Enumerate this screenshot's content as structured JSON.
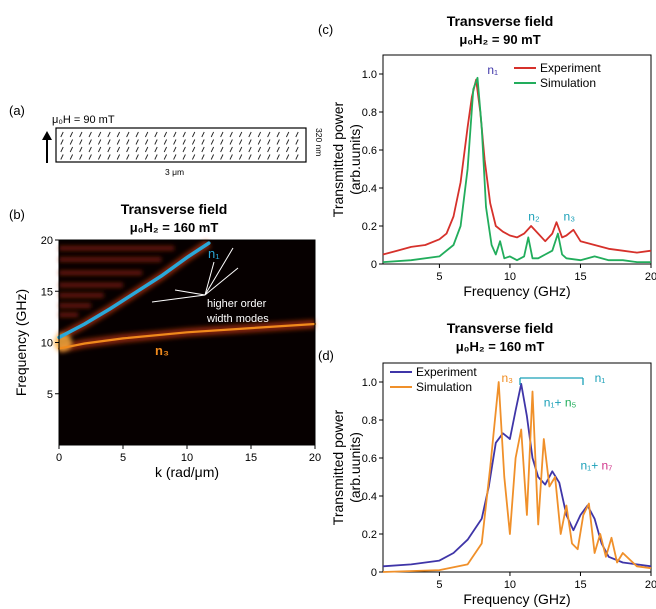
{
  "panels": {
    "a": {
      "label": "(a)",
      "field": "μ₀H = 90 mT",
      "width_label": "3 μm",
      "height_label": "320 nm"
    },
    "b": {
      "label": "(b)",
      "title_line1": "Transverse field",
      "title_line2": "μ₀H₂ = 160 mT",
      "annotation": [
        "higher order",
        "width modes"
      ]
    },
    "c": {
      "label": "(c)",
      "title_line1": "Transverse field",
      "title_line2": "μ₀H₂ = 90 mT"
    },
    "d": {
      "label": "(d)",
      "title_line1": "Transverse field",
      "title_line2": "μ₀H₂ = 160 mT"
    }
  },
  "colors": {
    "experiment_c": "#d6312b",
    "simulation_c": "#22ad5c",
    "experiment_d": "#3f35a8",
    "simulation_d": "#f0902a",
    "n1_mode": "#2aa8d8",
    "n3_mode": "#f08a1c",
    "label_n1_c": "#3f35a8",
    "label_n2": "#1ba0b8",
    "label_n1_d": "#1ba0b8",
    "label_n3_d": "#f08a1c",
    "label_n5": "#22ad5c",
    "label_n7": "#d0348a"
  },
  "chart_data": [
    {
      "id": "b",
      "type": "heatmap",
      "xlabel": "k (rad/μm)",
      "ylabel": "Frequency (GHz)",
      "xlim": [
        0,
        20
      ],
      "ylim": [
        0,
        20
      ],
      "xticks": [
        0,
        5,
        10,
        15,
        20
      ],
      "yticks": [
        5,
        10,
        15,
        20
      ],
      "series": [
        {
          "name": "n₁",
          "x": [
            0,
            2,
            4,
            6,
            8,
            10,
            11.7
          ],
          "y": [
            10.5,
            11.8,
            13.3,
            14.9,
            16.5,
            18.3,
            19.7
          ]
        },
        {
          "name": "n₃",
          "x": [
            0,
            2,
            5,
            10,
            15,
            20
          ],
          "y": [
            9.4,
            9.9,
            10.4,
            11.0,
            11.4,
            11.8
          ]
        }
      ],
      "mode_labels": {
        "n1": "n₁",
        "n3": "n₃"
      }
    },
    {
      "id": "c",
      "type": "line",
      "xlabel": "Frequency (GHz)",
      "ylabel": "Transmitted power (arb.uunits)",
      "xlim": [
        1,
        20
      ],
      "ylim": [
        0,
        1.1
      ],
      "xticks": [
        5,
        10,
        15,
        20
      ],
      "yticks": [
        0,
        0.2,
        0.4,
        0.6,
        0.8,
        1.0
      ],
      "series": [
        {
          "name": "Experiment",
          "x": [
            1,
            2,
            3,
            4,
            5,
            5.5,
            6,
            6.5,
            7,
            7.3,
            7.6,
            7.9,
            8.2,
            8.6,
            9,
            9.5,
            10,
            10.5,
            11,
            11.5,
            12,
            12.5,
            13,
            13.3,
            13.7,
            14,
            14.5,
            15,
            16,
            17,
            18,
            19,
            20
          ],
          "y": [
            0.05,
            0.07,
            0.09,
            0.1,
            0.13,
            0.16,
            0.25,
            0.43,
            0.72,
            0.88,
            0.97,
            0.8,
            0.55,
            0.32,
            0.2,
            0.17,
            0.15,
            0.14,
            0.16,
            0.2,
            0.16,
            0.12,
            0.16,
            0.22,
            0.14,
            0.15,
            0.18,
            0.12,
            0.1,
            0.08,
            0.07,
            0.06,
            0.07
          ]
        },
        {
          "name": "Simulation",
          "x": [
            1,
            3,
            5,
            6,
            6.5,
            7,
            7.4,
            7.7,
            8,
            8.3,
            8.7,
            9,
            9.3,
            9.6,
            10,
            10.5,
            11,
            11.3,
            11.6,
            12,
            12.5,
            13,
            13.4,
            13.7,
            14,
            15,
            16,
            17,
            18,
            19,
            20
          ],
          "y": [
            0.01,
            0.02,
            0.04,
            0.1,
            0.2,
            0.5,
            0.92,
            0.98,
            0.72,
            0.3,
            0.1,
            0.05,
            0.12,
            0.03,
            0.04,
            0.02,
            0.04,
            0.14,
            0.03,
            0.03,
            0.05,
            0.07,
            0.16,
            0.05,
            0.03,
            0.02,
            0.04,
            0.02,
            0.02,
            0.01,
            0.01
          ]
        }
      ],
      "legend": "top-right",
      "annotations": [
        {
          "text": "n₁",
          "x": 8.4,
          "y": 1.0
        },
        {
          "text": "n₂",
          "x": 11.3,
          "y": 0.23
        },
        {
          "text": "n₃",
          "x": 13.8,
          "y": 0.23
        }
      ]
    },
    {
      "id": "d",
      "type": "line",
      "xlabel": "Frequency (GHz)",
      "ylabel": "Transmitted power (arb.uunits)",
      "xlim": [
        1,
        20
      ],
      "ylim": [
        0,
        1.1
      ],
      "xticks": [
        5,
        10,
        15,
        20
      ],
      "yticks": [
        0,
        0.2,
        0.4,
        0.6,
        0.8,
        1.0
      ],
      "series": [
        {
          "name": "Experiment",
          "x": [
            1,
            3,
            5,
            6,
            7,
            8,
            8.5,
            9,
            9.5,
            10,
            10.4,
            10.8,
            11.2,
            11.6,
            12,
            12.5,
            13,
            13.5,
            14,
            14.5,
            15,
            15.5,
            16,
            16.5,
            17,
            18,
            19,
            20
          ],
          "y": [
            0.03,
            0.04,
            0.06,
            0.1,
            0.17,
            0.28,
            0.45,
            0.68,
            0.73,
            0.7,
            0.85,
            0.99,
            0.82,
            0.6,
            0.5,
            0.46,
            0.53,
            0.47,
            0.3,
            0.22,
            0.3,
            0.35,
            0.28,
            0.15,
            0.08,
            0.05,
            0.04,
            0.03
          ]
        },
        {
          "name": "Simulation",
          "x": [
            1,
            5,
            7,
            8,
            8.6,
            9.2,
            9.6,
            10,
            10.4,
            10.8,
            11.2,
            11.6,
            12,
            12.4,
            12.8,
            13.2,
            13.6,
            14,
            14.4,
            14.8,
            15.2,
            15.6,
            16,
            16.4,
            16.8,
            17.2,
            17.6,
            18,
            19,
            20
          ],
          "y": [
            0.0,
            0.01,
            0.04,
            0.15,
            0.55,
            1.0,
            0.5,
            0.2,
            0.6,
            0.75,
            0.3,
            0.95,
            0.25,
            0.7,
            0.45,
            0.5,
            0.2,
            0.35,
            0.15,
            0.12,
            0.3,
            0.36,
            0.1,
            0.2,
            0.08,
            0.18,
            0.05,
            0.1,
            0.03,
            0.02
          ]
        }
      ],
      "legend": "top-left",
      "annotations": [
        {
          "text": "n₃",
          "x": 9.4,
          "y": 1.0
        },
        {
          "text": "n₁",
          "x": 16.0,
          "y": 1.0
        },
        {
          "text": "n₁+ n₅",
          "x": 12.4,
          "y": 0.87
        },
        {
          "text": "n₁+ n₇",
          "x": 15.0,
          "y": 0.54
        }
      ]
    }
  ]
}
